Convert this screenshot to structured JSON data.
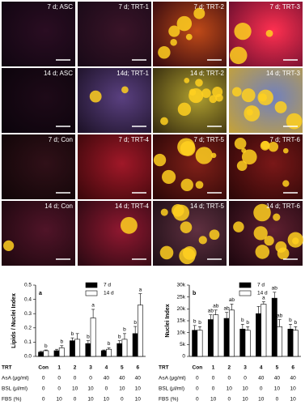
{
  "images": [
    {
      "label": "7 d; ASC"
    },
    {
      "label": "7 d; TRT-1"
    },
    {
      "label": "7 d; TRT-2"
    },
    {
      "label": "7 d; TRT-3"
    },
    {
      "label": "14 d; ASC"
    },
    {
      "label": "14d; TRT-1"
    },
    {
      "label": "14 d; TRT-2"
    },
    {
      "label": "14 d; TRT-3"
    },
    {
      "label": "7 d; Con"
    },
    {
      "label": "7 d; TRT-4"
    },
    {
      "label": "7 d; TRT-5"
    },
    {
      "label": "7 d; TRT-6"
    },
    {
      "label": "14 d; Con"
    },
    {
      "label": "14 d; TRT-4"
    },
    {
      "label": "14 d; TRT-5"
    },
    {
      "label": "14 d; TRT-6"
    }
  ],
  "chart_data": [
    {
      "type": "bar",
      "panel": "a",
      "ylabel": "Lipids / Nuclei Index",
      "xlabel": "TRT",
      "categories": [
        "Con",
        "1",
        "2",
        "3",
        "4",
        "5",
        "6"
      ],
      "series": [
        {
          "name": "7 d",
          "color": "#000000",
          "values": [
            0.03,
            0.04,
            0.11,
            0.09,
            0.04,
            0.09,
            0.16
          ],
          "errors": [
            0.005,
            0.01,
            0.02,
            0.02,
            0.005,
            0.02,
            0.05
          ],
          "letters": [
            null,
            null,
            "b",
            "b",
            null,
            "b",
            "b"
          ]
        },
        {
          "name": "14 d",
          "color": "#ffffff",
          "values": [
            0.04,
            0.06,
            0.12,
            0.27,
            0.05,
            0.12,
            0.36
          ],
          "errors": [
            0.005,
            0.015,
            0.04,
            0.06,
            0.01,
            0.04,
            0.08
          ],
          "letters": [
            "b",
            "b",
            null,
            "a",
            "b",
            "b",
            "a"
          ]
        }
      ],
      "ylim": [
        0,
        0.5
      ],
      "yticks": [
        {
          "value": 0,
          "label": "0.0"
        },
        0.1,
        0.2,
        0.3,
        0.4,
        0.5
      ],
      "table": [
        {
          "label": "AsA (μg/ml)",
          "values": [
            "0",
            "0",
            "0",
            "0",
            "40",
            "40",
            "40"
          ]
        },
        {
          "label": "BSL (μl/ml)",
          "values": [
            "0",
            "0",
            "10",
            "10",
            "0",
            "10",
            "10"
          ]
        },
        {
          "label": "FBS (%)",
          "values": [
            "0",
            "10",
            "0",
            "10",
            "10",
            "0",
            "10"
          ]
        }
      ]
    },
    {
      "type": "bar",
      "panel": "b",
      "ylabel": "Nuclei Index",
      "xlabel": "TRT",
      "categories": [
        "Con",
        "1",
        "2",
        "3",
        "4",
        "5",
        "6"
      ],
      "series": [
        {
          "name": "7 d",
          "color": "#000000",
          "values": [
            11000,
            15500,
            16000,
            11500,
            18000,
            24500,
            11500
          ],
          "errors": [
            2000,
            2000,
            2500,
            2000,
            3000,
            2500,
            2000
          ],
          "letters": [
            "b",
            "ab",
            "ab",
            "b",
            null,
            "ab",
            "b"
          ]
        },
        {
          "name": "14 d",
          "color": "#ffffff",
          "values": [
            11000,
            17500,
            19500,
            11000,
            22000,
            12500,
            11000
          ],
          "errors": [
            1500,
            2000,
            2500,
            1500,
            1000,
            3000,
            1500
          ],
          "letters": [
            "b",
            "ab",
            "ab",
            "b",
            "a",
            "ab",
            "b"
          ]
        }
      ],
      "ylim": [
        0,
        30000
      ],
      "yticks": [
        0,
        {
          "value": 5000,
          "label": "5k"
        },
        {
          "value": 10000,
          "label": "10k"
        },
        {
          "value": 15000,
          "label": "15k"
        },
        {
          "value": 20000,
          "label": "20k"
        },
        {
          "value": 25000,
          "label": "25k"
        },
        {
          "value": 30000,
          "label": "30k"
        }
      ],
      "table": [
        {
          "label": "AsA (μg/ml)",
          "values": [
            "0",
            "0",
            "0",
            "0",
            "40",
            "40",
            "40"
          ]
        },
        {
          "label": "BSL (μl/ml)",
          "values": [
            "0",
            "0",
            "10",
            "10",
            "0",
            "10",
            "10"
          ]
        },
        {
          "label": "FBS (%)",
          "values": [
            "0",
            "10",
            "0",
            "10",
            "10",
            "0",
            "10"
          ]
        }
      ]
    }
  ]
}
